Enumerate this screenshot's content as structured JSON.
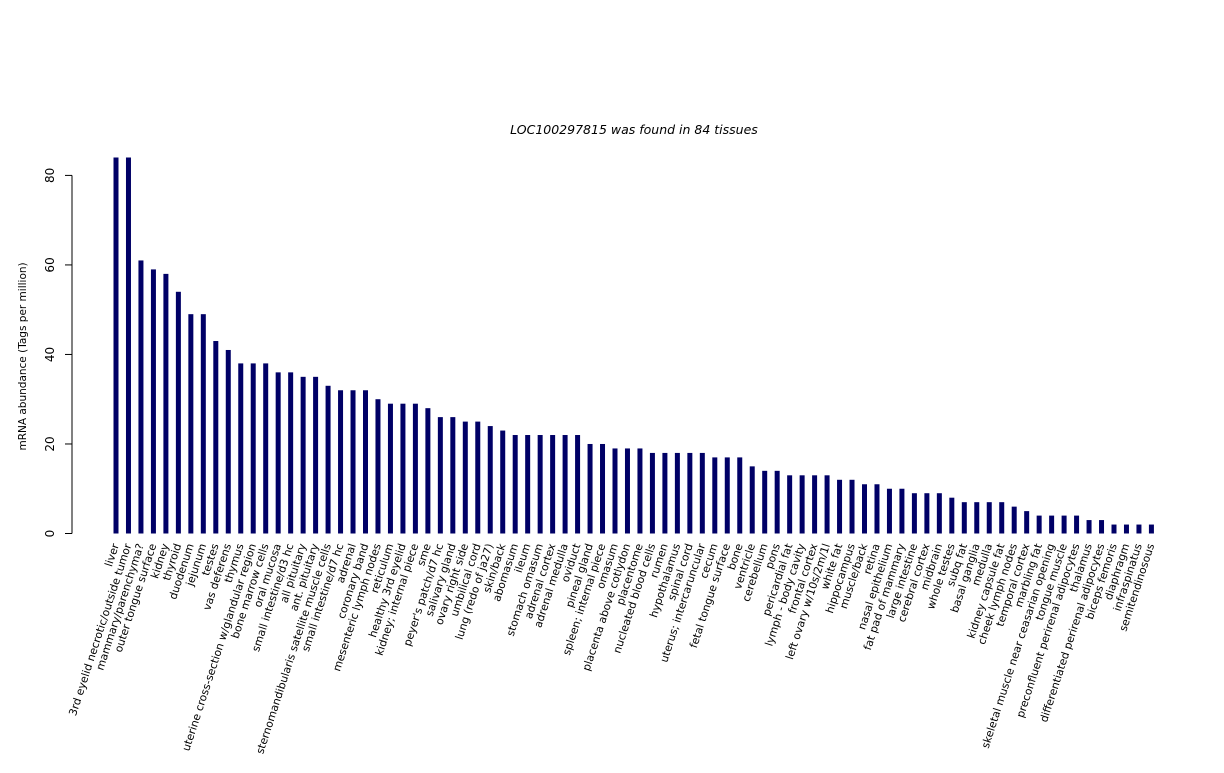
{
  "chart_data": {
    "type": "bar",
    "title": "LOC100297815  was found in  84  tissues",
    "xlabel": "",
    "ylabel": "mRNA abundance (Tags per million)",
    "ylim": [
      0,
      84
    ],
    "yticks": [
      0,
      20,
      40,
      60,
      80
    ],
    "bar_color": "#000066",
    "categories": [
      "liver",
      "3rd eyelid necrotic/outside tumor",
      "mammary/parenchyma?",
      "outer tongue surface",
      "kidney",
      "thyroid",
      "duodenum",
      "jejunum",
      "testes",
      "vas deferens",
      "thymus",
      "uterine cross-section w/glandular region",
      "bone marrow cells",
      "oral mucosa",
      "small intestine/d3 hc",
      "all pituitary",
      "ant. pituitary",
      "sternomandibularis satellite muscle cells",
      "small intestine/d7 hc",
      "adrenal",
      "coronary band",
      "mesenteric lymph nodes",
      "reticulum",
      "healthy 3rd eyelid",
      "kidney; internal piece",
      "sme",
      "peyer's patch/d7 hc",
      "salivary gland",
      "ovary right side",
      "umbilical cord",
      "lung (redo of ja27)",
      "skin/back",
      "abomasum",
      "ileum",
      "stomach omasum",
      "adrenal cortex",
      "adrenal medulla",
      "oviduct",
      "pineal gland",
      "spleen; internal piece",
      "omasum",
      "placenta above cotlydon",
      "placentome",
      "nucleated blood cells",
      "rumen",
      "hypothalamus",
      "spinal cord",
      "uterus; intercaruncular",
      "cecum",
      "fetal tongue surface",
      "bone",
      "ventricle",
      "cerebellum",
      "pons",
      "pericardial fat",
      "lymph - body cavity",
      "frontal cortex",
      "left ovary w/10s/2m/1l",
      "white fat",
      "hippocampus",
      "muscle/back",
      "retina",
      "nasal epithelium",
      "fat pad of mammary",
      "large intestine",
      "cerebral cortex",
      "midbrain",
      "whole testes",
      "subq fat",
      "basal ganglia",
      "medulla",
      "kidney capsule fat",
      "cheek lymph nodes",
      "temporal cortex",
      "marbling fat",
      "skeletal muscle near ceasarian opening",
      "tongue muscle",
      "preconfluent perirenal adipocytes",
      "thalamus",
      "differentiated perirenal adipocytes",
      "biceps femoris",
      "diaphragm",
      "infraspinatus",
      "semitendinosous"
    ],
    "values": [
      84,
      84,
      61,
      59,
      58,
      54,
      49,
      49,
      43,
      41,
      38,
      38,
      38,
      36,
      36,
      35,
      35,
      33,
      32,
      32,
      32,
      30,
      29,
      29,
      29,
      28,
      26,
      26,
      25,
      25,
      24,
      23,
      22,
      22,
      22,
      22,
      22,
      22,
      20,
      20,
      19,
      19,
      19,
      18,
      18,
      18,
      18,
      18,
      17,
      17,
      17,
      15,
      14,
      14,
      13,
      13,
      13,
      13,
      12,
      12,
      11,
      11,
      10,
      10,
      9,
      9,
      9,
      8,
      7,
      7,
      7,
      7,
      6,
      5,
      4,
      4,
      4,
      4,
      3,
      3,
      2,
      2,
      2,
      2
    ]
  }
}
